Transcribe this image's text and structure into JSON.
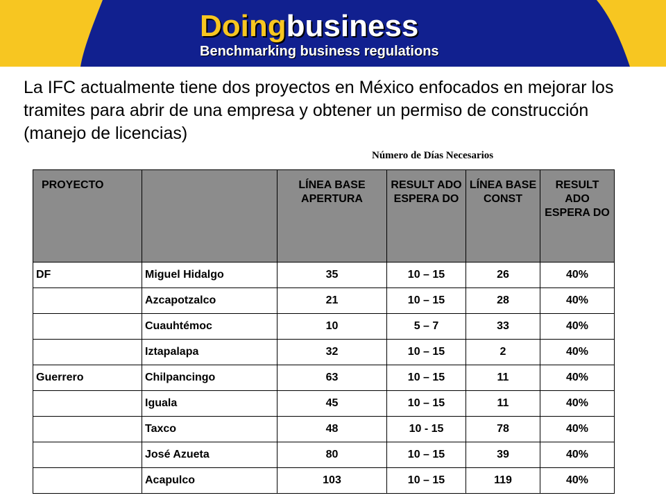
{
  "header": {
    "logo_part1": "Doing",
    "logo_part2": "business",
    "logo_subtitle": "Benchmarking business regulations"
  },
  "intro_text": "La IFC actualmente tiene dos proyectos en México enfocados en mejorar los tramites para abrir de una empresa y obtener un permiso de construcción (manejo de licencias)",
  "table_caption": "Número de Días Necesarios",
  "table": {
    "headers": [
      "PROYECTO",
      "",
      "LÍNEA BASE APERTURA",
      "RESULT ADO ESPERA DO",
      "LÍNEA BASE CONST",
      "RESULT ADO ESPERA DO"
    ],
    "rows": [
      [
        "DF",
        "Miguel Hidalgo",
        "35",
        "10 – 15",
        "26",
        "40%"
      ],
      [
        "",
        "Azcapotzalco",
        "21",
        "10 – 15",
        "28",
        "40%"
      ],
      [
        "",
        "Cuauhtémoc",
        "10",
        "5 – 7",
        "33",
        "40%"
      ],
      [
        "",
        "Iztapalapa",
        "32",
        "10 – 15",
        "2",
        "40%"
      ],
      [
        "Guerrero",
        "Chilpancingo",
        "63",
        "10 – 15",
        "11",
        "40%"
      ],
      [
        "",
        "Iguala",
        "45",
        "10 – 15",
        "11",
        "40%"
      ],
      [
        "",
        "Taxco",
        "48",
        "10 - 15",
        "78",
        "40%"
      ],
      [
        "",
        "José Azueta",
        "80",
        "10 – 15",
        "39",
        "40%"
      ],
      [
        "",
        "Acapulco",
        "103",
        "10 – 15",
        "119",
        "40%"
      ]
    ]
  },
  "colors": {
    "banner_blue": "#11208f",
    "banner_yellow": "#f7c621",
    "header_gray": "#8c8c8c"
  }
}
